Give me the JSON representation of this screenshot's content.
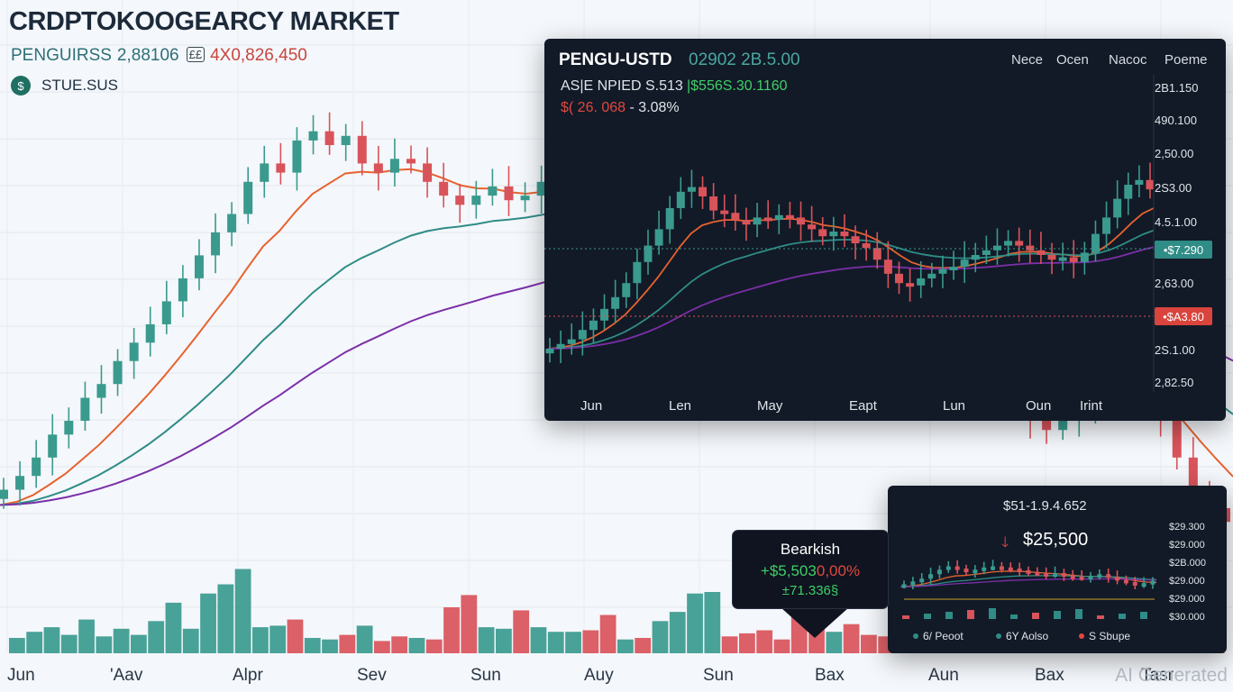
{
  "header": {
    "title": "CRDPTOKOOGEARCY MARKET",
    "pair": "PENGUIRSS",
    "price": "2,88106",
    "badge": "££",
    "value": "4X0,826,450",
    "status_icon": "currency-icon",
    "status": "STUE.SUS"
  },
  "watermark": "AI Generated",
  "colors": {
    "bull": "#3a9a8e",
    "bear": "#d9535a",
    "ema_fast": "#e8622f",
    "ema_mid": "#2f8c86",
    "ema_slow": "#7b2fa8",
    "panel_bg": "#121a27"
  },
  "chart_data": [
    {
      "type": "candlestick",
      "x_labels": [
        "Jun",
        "'Aav",
        "Alpr",
        "Sev",
        "Sun",
        "Auy",
        "Sun",
        "Bax",
        "Aun",
        "Bax",
        "Tasr"
      ],
      "series": [
        {
          "name": "price",
          "values": [
            0.15,
            0.18,
            0.22,
            0.27,
            0.3,
            0.35,
            0.38,
            0.43,
            0.47,
            0.51,
            0.56,
            0.61,
            0.66,
            0.71,
            0.75,
            0.82,
            0.86,
            0.84,
            0.91,
            0.93,
            0.9,
            0.92,
            0.86,
            0.84,
            0.87,
            0.86,
            0.82,
            0.79,
            0.77,
            0.79,
            0.81,
            0.78,
            0.79,
            0.82,
            0.85,
            0.81,
            0.77,
            0.72,
            0.74,
            0.73,
            0.76,
            0.79,
            0.81,
            0.83,
            0.8,
            0.79,
            0.76,
            0.73,
            0.71,
            0.69,
            0.71,
            0.72,
            0.67,
            0.63,
            0.59,
            0.56,
            0.53,
            0.49,
            0.46,
            0.42,
            0.39,
            0.36,
            0.33,
            0.3,
            0.28,
            0.3,
            0.32,
            0.34,
            0.37,
            0.41,
            0.38,
            0.3,
            0.22,
            0.14,
            0.11,
            0.08
          ]
        },
        {
          "name": "volume",
          "values": [
            0.1,
            0.14,
            0.17,
            0.12,
            0.22,
            0.11,
            0.16,
            0.12,
            0.21,
            0.33,
            0.16,
            0.39,
            0.45,
            0.55,
            0.17,
            0.18,
            0.22,
            0.1,
            0.09,
            0.12,
            0.18,
            0.08,
            0.11,
            0.1,
            0.09,
            0.3,
            0.38,
            0.17,
            0.16,
            0.28,
            0.17,
            0.14,
            0.14,
            0.15,
            0.25,
            0.09,
            0.1,
            0.21,
            0.27,
            0.39,
            0.4,
            0.11,
            0.13,
            0.15,
            0.09,
            0.3,
            0.21,
            0.14,
            0.19,
            0.12,
            0.11,
            0.2,
            0.32,
            0.27,
            0.3,
            0.39,
            0.55,
            0.48,
            0.39,
            0.33,
            0.3,
            0.2,
            0.22,
            0.2,
            0.15,
            0.11,
            0.19,
            0.2,
            0.18,
            0.21
          ]
        }
      ]
    },
    {
      "type": "candlestick",
      "title": "PENGU-USTD",
      "price": "02902 2B.5.00",
      "tabs": [
        "Nece",
        "Ocen",
        "Nacoc",
        "Poeme"
      ],
      "line2_label": "AS|E NPIED S.513",
      "line2_value": "|$556S.30.1160",
      "line3_value": "$( 26. 068",
      "line3_pct": "- 3.08%",
      "y_ticks": [
        "2B1.150",
        "490.100",
        "2,50.00",
        "2S3.00",
        "4.5.1.00",
        "•$7.290",
        "2,63.00",
        "•$A3.80",
        "2S.1.00",
        "2,82.50"
      ],
      "x_labels": [
        "Jun",
        "Len",
        "May",
        "Eapt",
        "Lun",
        "Oun",
        "Irint"
      ],
      "series": [
        {
          "name": "price",
          "values": [
            0.1,
            0.12,
            0.14,
            0.18,
            0.22,
            0.27,
            0.32,
            0.38,
            0.47,
            0.54,
            0.61,
            0.7,
            0.77,
            0.79,
            0.75,
            0.69,
            0.68,
            0.65,
            0.63,
            0.66,
            0.65,
            0.67,
            0.66,
            0.63,
            0.61,
            0.58,
            0.6,
            0.58,
            0.55,
            0.53,
            0.48,
            0.42,
            0.38,
            0.37,
            0.4,
            0.42,
            0.44,
            0.45,
            0.48,
            0.5,
            0.52,
            0.54,
            0.56,
            0.54,
            0.52,
            0.5,
            0.48,
            0.49,
            0.47,
            0.51,
            0.59,
            0.66,
            0.74,
            0.8,
            0.82,
            0.78
          ]
        }
      ]
    },
    {
      "type": "candlestick",
      "header": "$51-1.9.4.652",
      "value": "$25,500",
      "y_ticks": [
        "$29.300",
        "$29.000",
        "$29.000",
        "$2B.000",
        "$29.000",
        "$30.000"
      ],
      "legend": [
        "6/ Peoot",
        "6Y Aolso",
        "S Sbupe"
      ],
      "series": [
        {
          "name": "price",
          "values": [
            0.3,
            0.35,
            0.4,
            0.48,
            0.56,
            0.62,
            0.58,
            0.52,
            0.56,
            0.6,
            0.62,
            0.6,
            0.58,
            0.55,
            0.52,
            0.5,
            0.48,
            0.5,
            0.46,
            0.44,
            0.42,
            0.45,
            0.48,
            0.43,
            0.38,
            0.34,
            0.3,
            0.32,
            0.36
          ]
        }
      ]
    }
  ],
  "tooltip": {
    "title": "Bearkish",
    "change_pos": "+$5,503",
    "change_neg": "0,00%",
    "volume": "±71.336§"
  }
}
